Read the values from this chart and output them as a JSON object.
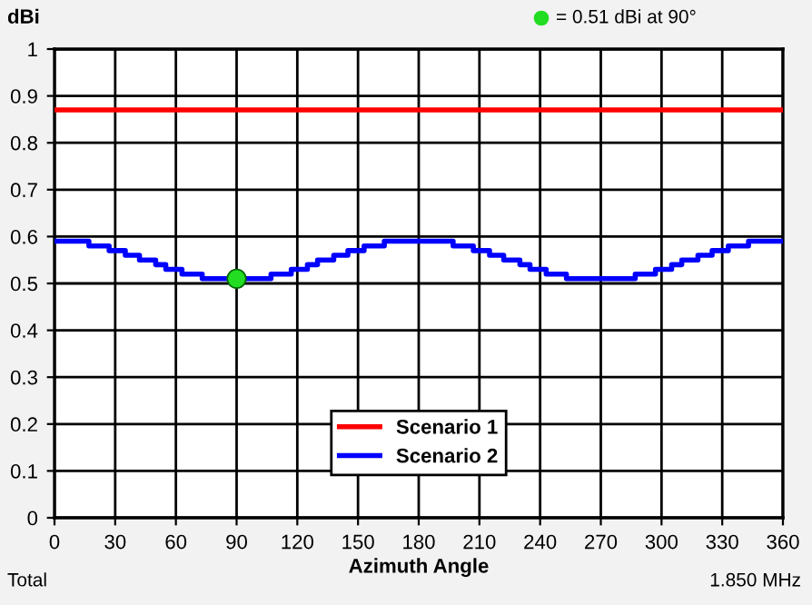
{
  "chart_data": {
    "type": "line",
    "ylabel": "dBi",
    "xlabel": "Azimuth Angle",
    "annotations": [
      "= 0.51 dBi at 90°",
      "Total",
      "1.850 MHz"
    ],
    "xlim": [
      0,
      360
    ],
    "xticks": [
      0,
      30,
      60,
      90,
      120,
      150,
      180,
      210,
      240,
      270,
      300,
      330,
      360
    ],
    "ylim": [
      0,
      1
    ],
    "yticks": [
      0,
      0.1,
      0.2,
      0.3,
      0.4,
      0.5,
      0.6,
      0.7,
      0.8,
      0.9,
      1
    ],
    "grid": true,
    "legend": "bottom",
    "marker": "none",
    "series": [
      {
        "name": "Scenario 1",
        "color": "#ff0000",
        "x": [
          0,
          360
        ],
        "values": [
          0.87,
          0.87
        ]
      },
      {
        "name": "Scenario 2",
        "type": "step",
        "color": "#0000ff",
        "x": [
          0,
          17,
          27,
          35,
          42,
          50,
          55,
          63,
          73,
          107,
          117,
          125,
          130,
          138,
          145,
          153,
          163,
          197,
          207,
          215,
          222,
          230,
          235,
          243,
          253,
          287,
          297,
          305,
          310,
          318,
          325,
          333,
          343,
          360
        ],
        "values": [
          0.59,
          0.58,
          0.57,
          0.56,
          0.55,
          0.54,
          0.53,
          0.52,
          0.51,
          0.52,
          0.53,
          0.54,
          0.55,
          0.56,
          0.57,
          0.58,
          0.59,
          0.58,
          0.57,
          0.56,
          0.55,
          0.54,
          0.53,
          0.52,
          0.51,
          0.52,
          0.53,
          0.54,
          0.55,
          0.56,
          0.57,
          0.58,
          0.59,
          0.59
        ]
      },
      {
        "type": "scatter",
        "marker": "circle",
        "color": "#22dd22",
        "x": [
          90
        ],
        "values": [
          0.51
        ]
      }
    ]
  }
}
